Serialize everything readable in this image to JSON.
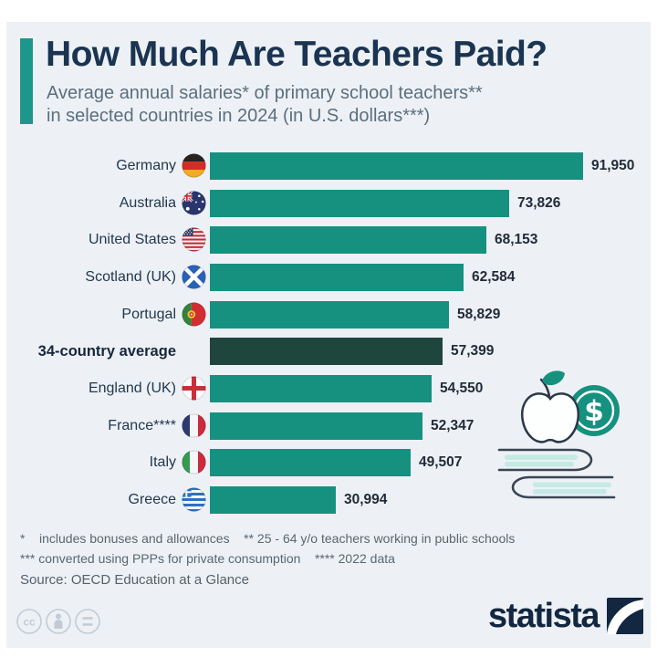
{
  "header": {
    "title": "How Much Are Teachers Paid?",
    "subtitle_line1": "Average annual salaries* of primary school teachers**",
    "subtitle_line2": "in selected countries in 2024 (in U.S. dollars***)"
  },
  "chart_data": {
    "type": "bar",
    "orientation": "horizontal",
    "title": "Average annual salaries of primary school teachers in selected countries in 2024 (in U.S. dollars)",
    "unit": "U.S. dollars",
    "xlim": [
      0,
      95000
    ],
    "grid": false,
    "legend": false,
    "categories": [
      "Germany",
      "Australia",
      "United States",
      "Scotland (UK)",
      "Portugal",
      "34-country average",
      "England (UK)",
      "France****",
      "Italy",
      "Greece"
    ],
    "values": [
      91950,
      73826,
      68153,
      62584,
      58829,
      57399,
      54550,
      52347,
      49507,
      30994
    ],
    "value_labels": [
      "91,950",
      "73,826",
      "68,153",
      "62,584",
      "58,829",
      "57,399",
      "54,550",
      "52,347",
      "49,507",
      "30,994"
    ],
    "flags": [
      "de",
      "au",
      "us",
      "sct",
      "pt",
      null,
      "en",
      "fr",
      "it",
      "gr"
    ],
    "flag_names": [
      "germany",
      "australia",
      "united-states",
      "scotland",
      "portugal",
      null,
      "england",
      "france",
      "italy",
      "greece"
    ],
    "highlight_index": 5,
    "bar_color": "#169180",
    "highlight_color": "#1e463d"
  },
  "footnotes": {
    "line1": "*    includes bonuses and allowances    ** 25 - 64 y/o teachers working in public schools",
    "line2": "*** converted using PPPs for private consumption    **** 2022 data",
    "source": "Source: OECD Education at a Glance"
  },
  "footer": {
    "logo_text": "statista",
    "license_icons": [
      "cc-icon",
      "attribution-icon",
      "equal-icon"
    ]
  },
  "icons": {
    "illustration": [
      "apple-icon",
      "dollar-coin-icon",
      "books-icon"
    ]
  },
  "colors": {
    "background": "#edf1f6",
    "accent": "#1f968a",
    "title": "#1a3451",
    "subtitle": "#5b6e7d",
    "bar": "#169180",
    "highlight_bar": "#1e463d",
    "label": "#21384f",
    "value": "#232b39",
    "footnote": "#5a6570",
    "logo_navy": "#132740",
    "illustration_teal": "#169180",
    "illustration_light_teal": "#c5eae3"
  }
}
